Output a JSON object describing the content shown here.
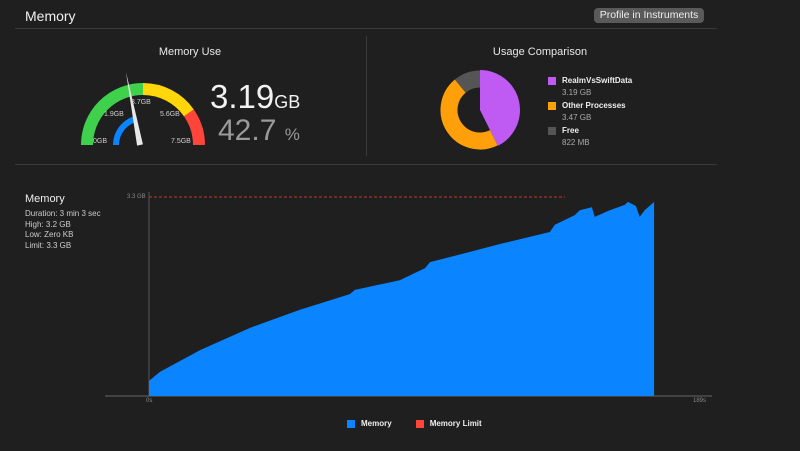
{
  "header": {
    "title": "Memory",
    "profile_button": "Profile in Instruments"
  },
  "memory_use": {
    "title": "Memory Use",
    "value": "3.19",
    "unit": "GB",
    "percent": "42.7",
    "percent_unit": "%",
    "percent_value": 42.7,
    "gauge_labels": [
      "0GB",
      "1.9GB",
      "3.7GB",
      "5.6GB",
      "7.5GB"
    ],
    "colors": {
      "green": "#3fd14b",
      "yellow": "#ffd60a",
      "red": "#ff453a",
      "blue": "#0a84ff"
    }
  },
  "usage_comparison": {
    "title": "Usage Comparison",
    "items": [
      {
        "label": "RealmVsSwiftData",
        "value": "3.19 GB",
        "gb": 3.19,
        "color": "#bf5af2"
      },
      {
        "label": "Other Processes",
        "value": "3.47 GB",
        "gb": 3.47,
        "color": "#ff9f0a"
      },
      {
        "label": "Free",
        "value": "822 MB",
        "gb": 0.822,
        "color": "#555555"
      }
    ]
  },
  "memory_chart": {
    "title": "Memory",
    "stats": [
      "Duration: 3 min 3 sec",
      "High: 3.2 GB",
      "Low: Zero KB",
      "Limit: 3.3 GB"
    ],
    "legend": [
      {
        "label": "Memory",
        "color": "#0a84ff"
      },
      {
        "label": "Memory Limit",
        "color": "#ff453a"
      }
    ]
  },
  "chart_data": {
    "type": "area",
    "xlabel": "",
    "ylabel": "",
    "x_ticks": [
      "0s",
      "189s"
    ],
    "xlim": [
      0,
      189
    ],
    "ylim": [
      0,
      3.3
    ],
    "limit_label": "3.3 GB",
    "limit": 3.3,
    "series": [
      {
        "name": "Memory",
        "x": [
          0,
          3.7,
          17.4,
          34.4,
          51.4,
          68.4,
          70.1,
          85.4,
          94,
          95.7,
          109.3,
          119.5,
          136.5,
          138.2,
          145,
          146.7,
          150.8,
          151.8,
          156.9,
          162,
          163.1,
          165.8,
          167.1,
          168.8,
          172
        ],
        "values": [
          0.25,
          0.4,
          0.76,
          1.13,
          1.43,
          1.69,
          1.76,
          1.92,
          2.12,
          2.22,
          2.39,
          2.52,
          2.72,
          2.84,
          3.0,
          3.08,
          3.13,
          2.97,
          3.08,
          3.17,
          3.22,
          3.15,
          2.97,
          3.08,
          3.22
        ]
      }
    ]
  }
}
